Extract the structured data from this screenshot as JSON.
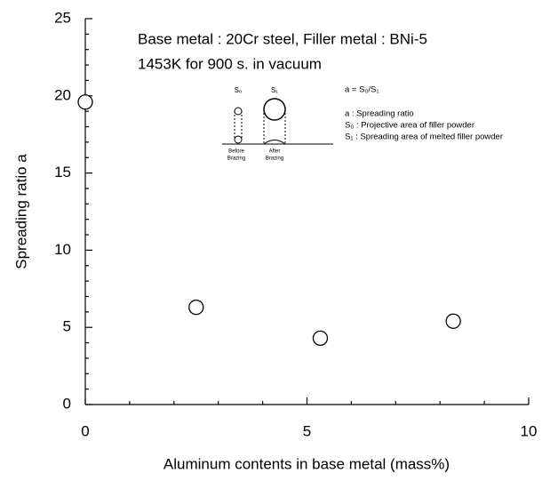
{
  "chart_data": {
    "type": "scatter",
    "annotations": [
      "Base metal : 20Cr steel, Filler metal : BNi-5",
      "1453K for 900 s. in vacuum"
    ],
    "xlabel": "Aluminum contents in base metal (mass%)",
    "ylabel": "Spreading ratio  a",
    "inset": {
      "s0": "S₀",
      "s1": "S₁",
      "before": [
        "Before",
        "Brazing"
      ],
      "after": [
        "After",
        "Brazing"
      ],
      "formula": "a = S₀/S₁",
      "legend": [
        "a : Spreading ratio",
        "S₀ : Projective area of filler powder",
        "S₁ : Spreading area of melted filler powder"
      ]
    },
    "x": [
      0,
      2.5,
      5.3,
      8.3
    ],
    "values": [
      19.6,
      6.3,
      4.3,
      5.4
    ],
    "color": "#000000",
    "xlim": [
      0,
      10
    ],
    "xticks": [
      0,
      5,
      10
    ],
    "xminorticks": [
      1,
      2,
      3,
      4,
      6,
      7,
      8,
      9
    ],
    "ylim": [
      0,
      25
    ],
    "yticks": [
      0,
      5,
      10,
      15,
      20,
      25
    ],
    "yminorticks": [
      1,
      2,
      3,
      4,
      6,
      7,
      8,
      9,
      11,
      12,
      13,
      14,
      16,
      17,
      18,
      19,
      21,
      22,
      23,
      24
    ]
  }
}
